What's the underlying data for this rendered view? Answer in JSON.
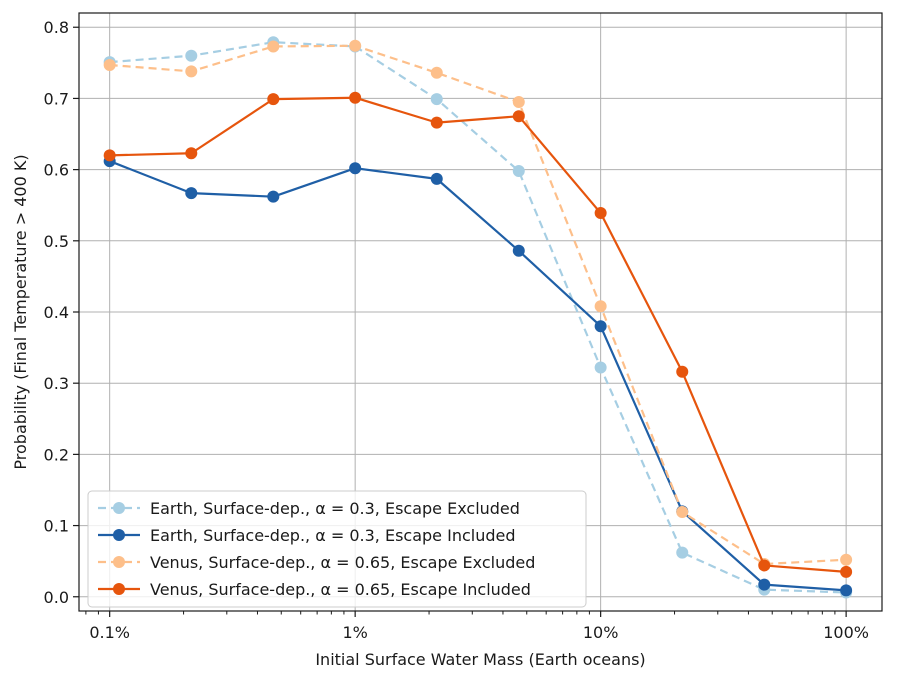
{
  "chart_data": {
    "type": "line",
    "title": "",
    "xlabel": "Initial Surface Water Mass (Earth oceans)",
    "ylabel": "Probability (Final Temperature > 400 K)",
    "xscale": "log",
    "xlim": [
      0.00075,
      1.4
    ],
    "ylim": [
      -0.02,
      0.82
    ],
    "grid": true,
    "legend_position": "lower-left",
    "x_ticks": [
      {
        "value": 0.001,
        "label": "0.1%"
      },
      {
        "value": 0.01,
        "label": "1%"
      },
      {
        "value": 0.1,
        "label": "10%"
      },
      {
        "value": 1,
        "label": "100%"
      }
    ],
    "y_ticks": [
      {
        "value": 0.0,
        "label": "0.0"
      },
      {
        "value": 0.1,
        "label": "0.1"
      },
      {
        "value": 0.2,
        "label": "0.2"
      },
      {
        "value": 0.3,
        "label": "0.3"
      },
      {
        "value": 0.4,
        "label": "0.4"
      },
      {
        "value": 0.5,
        "label": "0.5"
      },
      {
        "value": 0.6,
        "label": "0.6"
      },
      {
        "value": 0.7,
        "label": "0.7"
      },
      {
        "value": 0.8,
        "label": "0.8"
      }
    ],
    "x": [
      0.001,
      0.00215,
      0.00464,
      0.01,
      0.0215,
      0.0464,
      0.1,
      0.215,
      0.464,
      1.0
    ],
    "series": [
      {
        "name": "Earth, Surface-dep., α = 0.3, Escape Excluded",
        "color": "#a6cee3",
        "dashed": true,
        "values": [
          0.751,
          0.76,
          0.779,
          0.773,
          0.699,
          0.598,
          0.322,
          0.062,
          0.01,
          0.006
        ]
      },
      {
        "name": "Earth, Surface-dep., α = 0.3, Escape Included",
        "color": "#1f5fa6",
        "dashed": false,
        "values": [
          0.612,
          0.567,
          0.562,
          0.602,
          0.587,
          0.486,
          0.38,
          0.12,
          0.017,
          0.009
        ]
      },
      {
        "name": "Venus, Surface-dep., α = 0.65, Escape Excluded",
        "color": "#fdbf8a",
        "dashed": true,
        "values": [
          0.747,
          0.738,
          0.773,
          0.774,
          0.736,
          0.695,
          0.408,
          0.119,
          0.046,
          0.052
        ]
      },
      {
        "name": "Venus, Surface-dep., α = 0.65, Escape Included",
        "color": "#e6550d",
        "dashed": false,
        "values": [
          0.62,
          0.623,
          0.699,
          0.701,
          0.666,
          0.675,
          0.539,
          0.316,
          0.044,
          0.035
        ]
      }
    ]
  }
}
